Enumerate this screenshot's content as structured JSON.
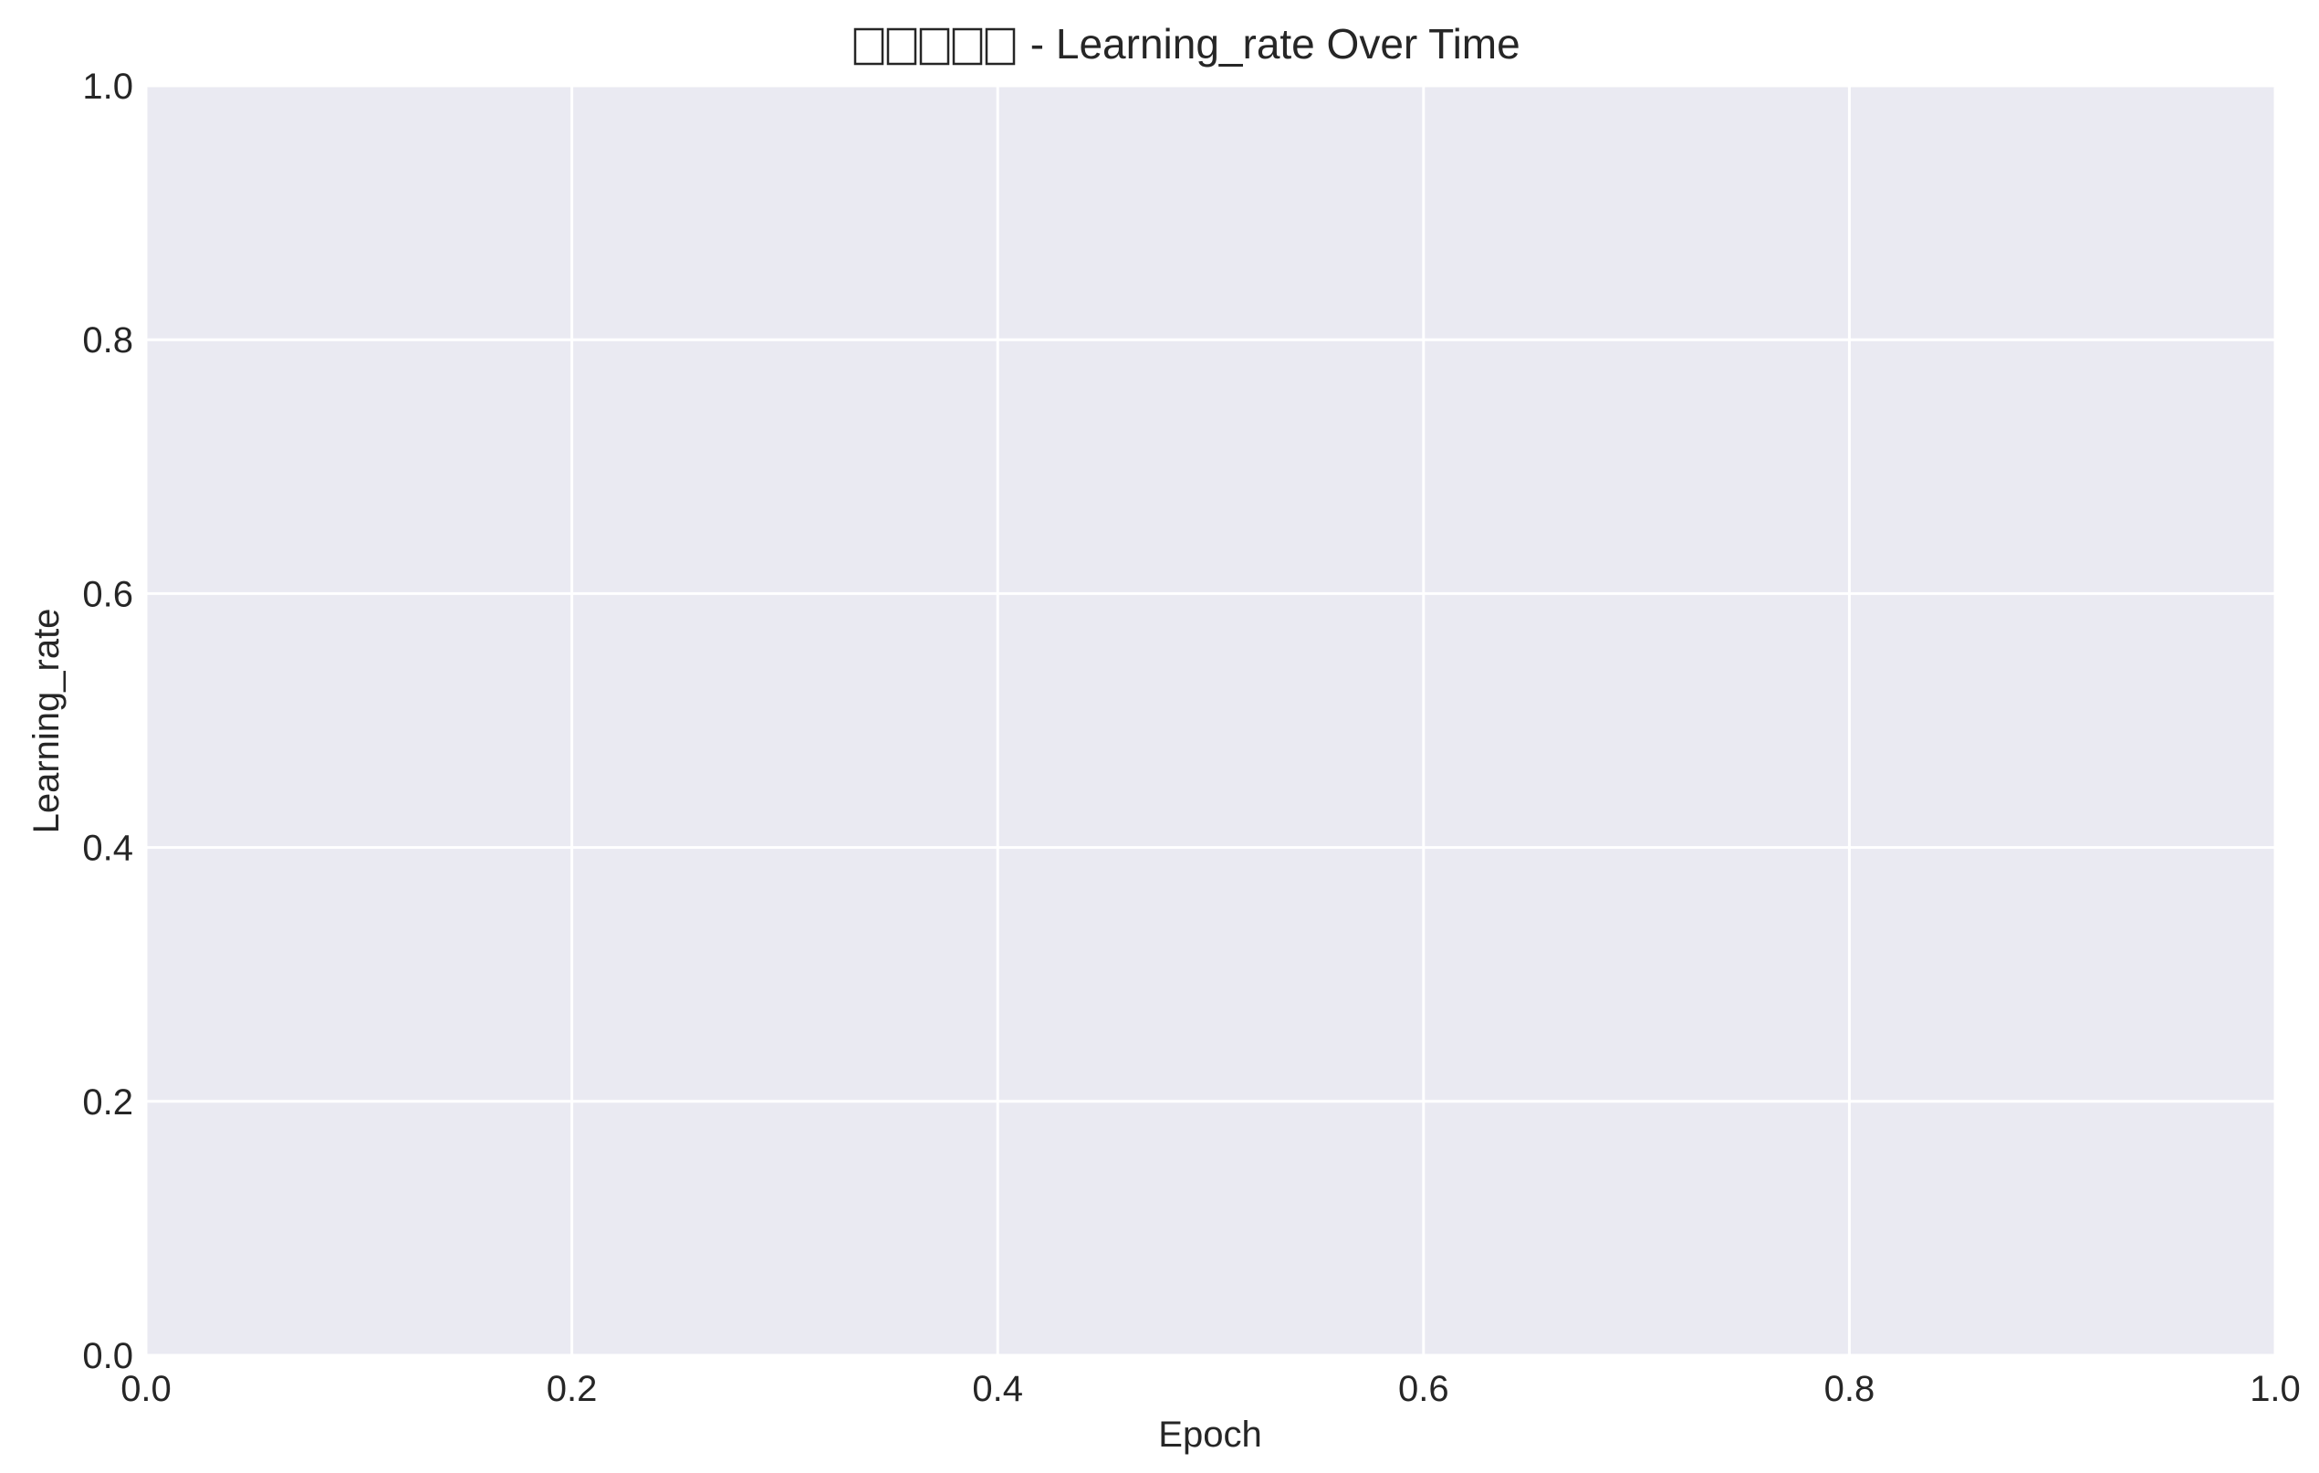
{
  "chart_data": {
    "type": "line",
    "title_placeholder_glyph_count": 5,
    "title": " - Learning_rate Over Time",
    "xlabel": "Epoch",
    "ylabel": "Learning_rate",
    "xlim": [
      0.0,
      1.0
    ],
    "ylim": [
      0.0,
      1.0
    ],
    "xticks": [
      "0.0",
      "0.2",
      "0.4",
      "0.6",
      "0.8",
      "1.0"
    ],
    "yticks": [
      "0.0",
      "0.2",
      "0.4",
      "0.6",
      "0.8",
      "1.0"
    ],
    "grid": true,
    "series": []
  },
  "colors": {
    "plot_background": "#eaeaf2",
    "grid": "#ffffff",
    "text": "#262626"
  }
}
